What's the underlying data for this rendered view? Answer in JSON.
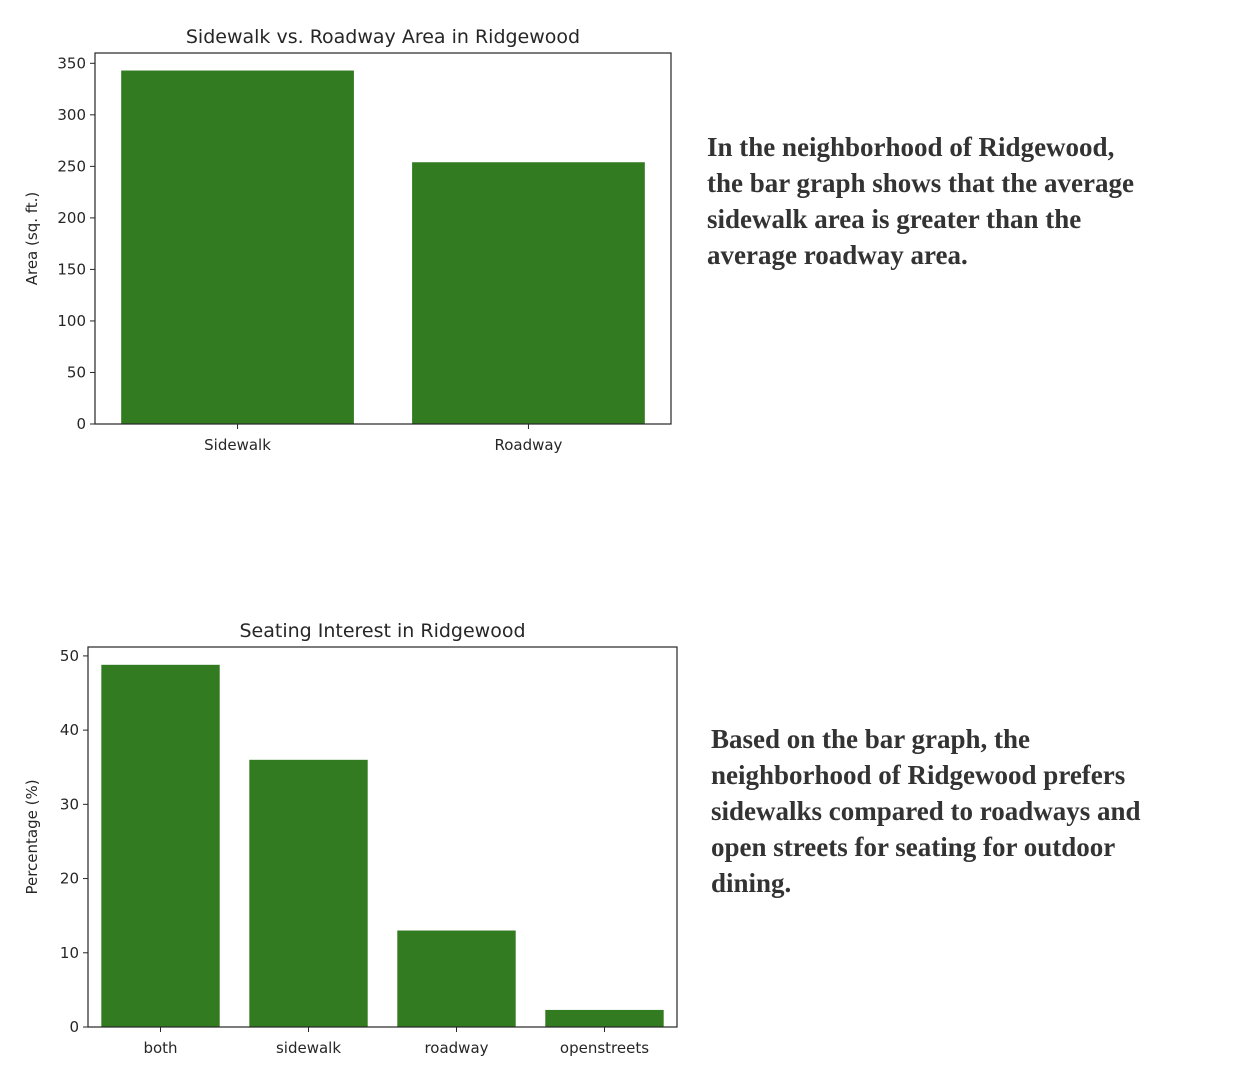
{
  "captions": {
    "top": [
      "In the neighborhood of Ridgewood,",
      "the bar graph shows that the average",
      "sidewalk area is greater than the",
      "average roadway area."
    ],
    "bottom": [
      "Based on the bar graph, the",
      "neighborhood of Ridgewood prefers",
      "sidewalks compared to roadways and",
      "open streets for seating for outdoor",
      "dining."
    ]
  },
  "chart_data": [
    {
      "type": "bar",
      "title": "Sidewalk vs. Roadway Area in Ridgewood",
      "xlabel": "",
      "ylabel": "Area (sq. ft.)",
      "categories": [
        "Sidewalk",
        "Roadway"
      ],
      "values": [
        343,
        254
      ],
      "ylim": [
        0,
        360
      ],
      "yticks": [
        0,
        50,
        100,
        150,
        200,
        250,
        300,
        350
      ],
      "color": "#337b21",
      "grid": false
    },
    {
      "type": "bar",
      "title": "Seating Interest in Ridgewood",
      "xlabel": "",
      "ylabel": "Percentage (%)",
      "categories": [
        "both",
        "sidewalk",
        "roadway",
        "openstreets"
      ],
      "values": [
        48.8,
        36.0,
        13.0,
        2.3
      ],
      "ylim": [
        0,
        51.2
      ],
      "yticks": [
        0,
        10,
        20,
        30,
        40,
        50
      ],
      "color": "#337b21",
      "grid": false
    }
  ]
}
